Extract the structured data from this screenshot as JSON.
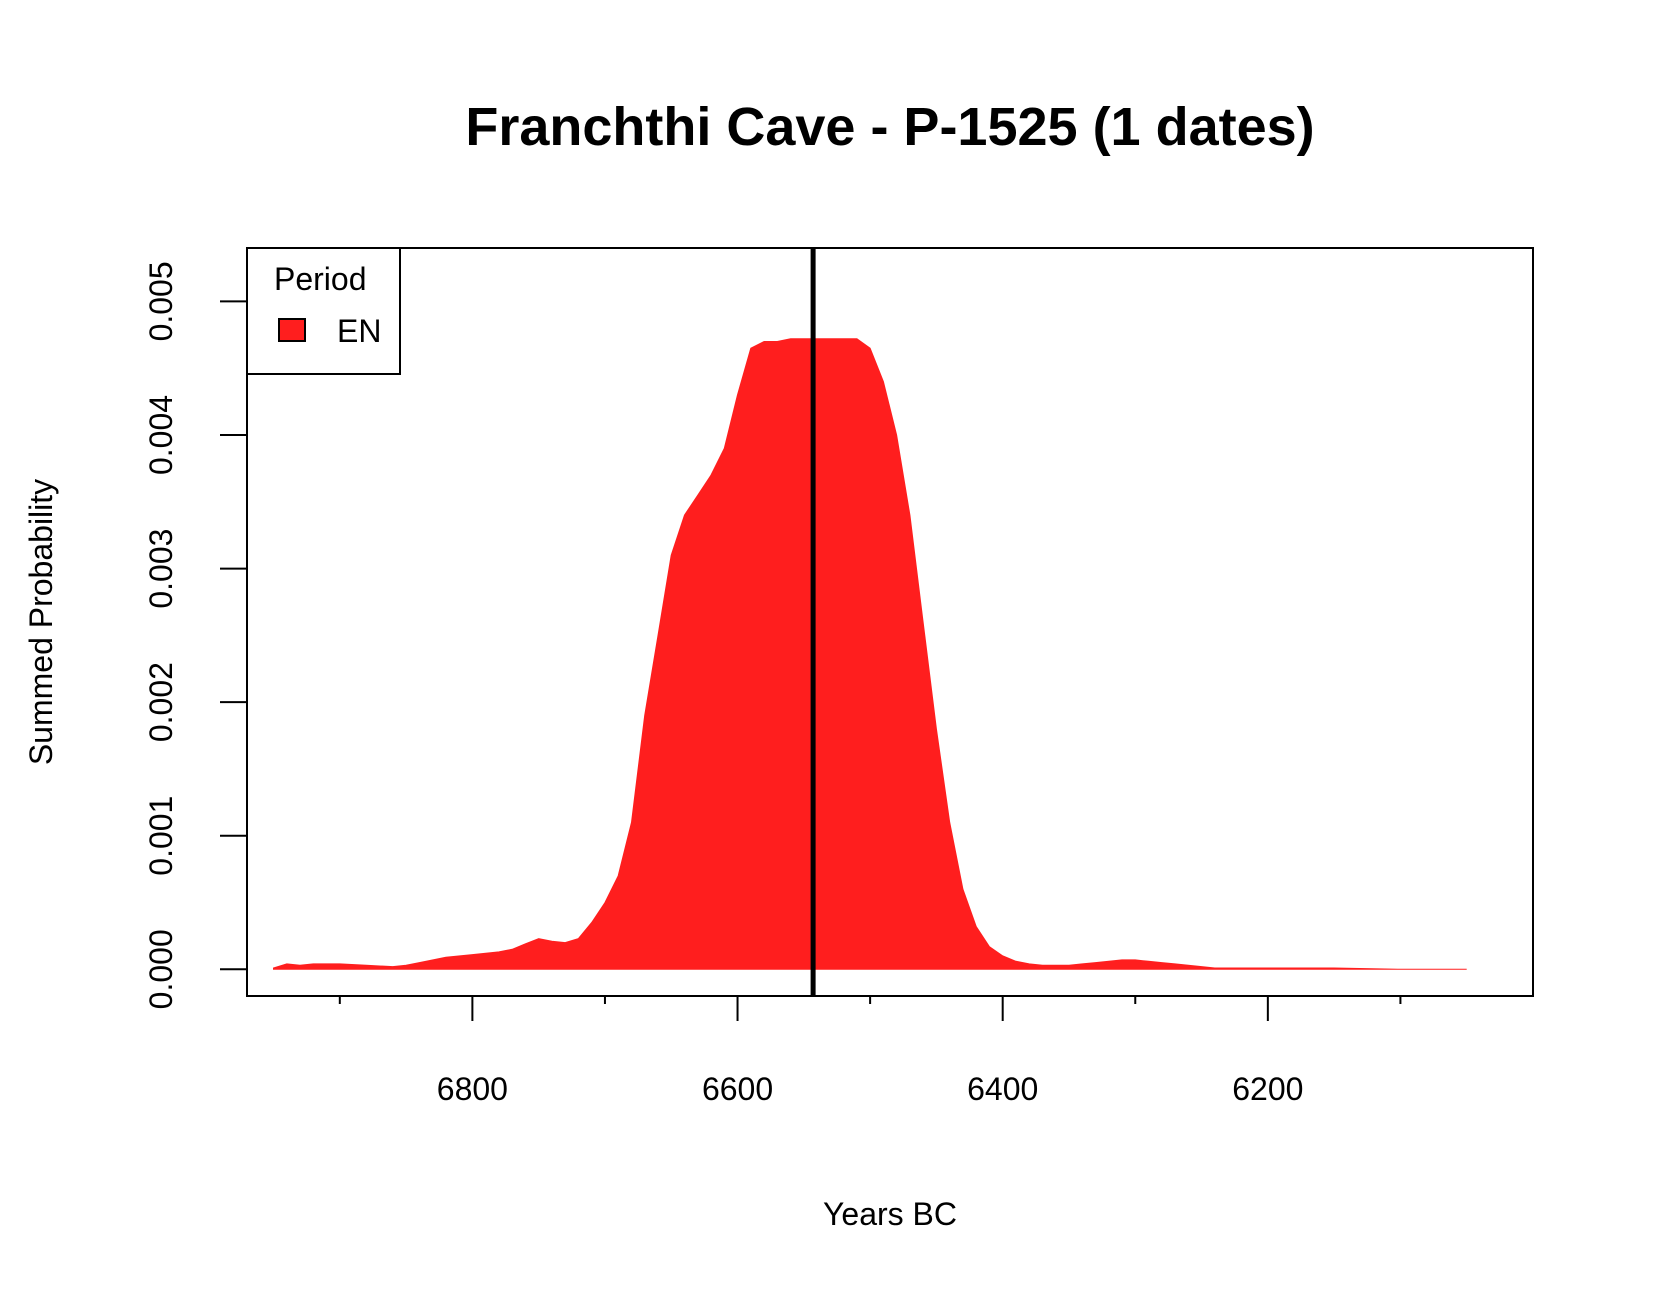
{
  "chart_data": {
    "type": "area",
    "title": "Franchthi Cave - P-1525 (1 dates)",
    "xlabel": "Years BC",
    "ylabel": "Summed Probability",
    "xlim": [
      6970,
      6000
    ],
    "ylim": [
      -0.0002,
      0.0054
    ],
    "x_reversed": true,
    "x_ticks": [
      6800,
      6600,
      6400,
      6200
    ],
    "x_tick_labels": [
      "6800",
      "6600",
      "6400",
      "6200"
    ],
    "x_minor_ticks": [
      6900,
      6700,
      6500,
      6300,
      6100
    ],
    "y_ticks": [
      0.0,
      0.001,
      0.002,
      0.003,
      0.004,
      0.005
    ],
    "y_tick_labels": [
      "0.000",
      "0.001",
      "0.002",
      "0.003",
      "0.004",
      "0.005"
    ],
    "legend": {
      "title": "Period",
      "position": "top-left",
      "entries": [
        {
          "label": "EN",
          "color": "#ff1e1e"
        }
      ]
    },
    "vertical_line": {
      "x": 6543,
      "color": "#000000"
    },
    "grid": false,
    "series": [
      {
        "name": "EN",
        "color": "#ff1e1e",
        "x": [
          6950,
          6940,
          6930,
          6920,
          6900,
          6880,
          6860,
          6850,
          6840,
          6820,
          6800,
          6780,
          6770,
          6760,
          6750,
          6740,
          6730,
          6720,
          6710,
          6700,
          6690,
          6680,
          6670,
          6660,
          6650,
          6640,
          6630,
          6620,
          6610,
          6600,
          6590,
          6580,
          6570,
          6560,
          6550,
          6540,
          6530,
          6520,
          6510,
          6500,
          6490,
          6480,
          6470,
          6460,
          6450,
          6440,
          6430,
          6420,
          6410,
          6400,
          6390,
          6380,
          6370,
          6360,
          6350,
          6340,
          6330,
          6320,
          6310,
          6300,
          6290,
          6280,
          6270,
          6260,
          6250,
          6240,
          6220,
          6200,
          6150,
          6100,
          6050
        ],
        "values": [
          1e-05,
          4e-05,
          3e-05,
          4e-05,
          4e-05,
          3e-05,
          2e-05,
          3e-05,
          5e-05,
          9e-05,
          0.00011,
          0.00013,
          0.00015,
          0.00019,
          0.00023,
          0.00021,
          0.0002,
          0.00023,
          0.00035,
          0.0005,
          0.0007,
          0.0011,
          0.0019,
          0.0025,
          0.0031,
          0.0034,
          0.00355,
          0.0037,
          0.0039,
          0.0043,
          0.00465,
          0.0047,
          0.0047,
          0.00472,
          0.00472,
          0.00472,
          0.00472,
          0.00472,
          0.00472,
          0.00465,
          0.0044,
          0.004,
          0.0034,
          0.0026,
          0.0018,
          0.0011,
          0.0006,
          0.00032,
          0.00017,
          0.0001,
          6e-05,
          4e-05,
          3e-05,
          3e-05,
          3e-05,
          4e-05,
          5e-05,
          6e-05,
          7e-05,
          7e-05,
          6e-05,
          5e-05,
          4e-05,
          3e-05,
          2e-05,
          1e-05,
          1e-05,
          1e-05,
          1e-05,
          0.0,
          0.0
        ]
      }
    ]
  }
}
